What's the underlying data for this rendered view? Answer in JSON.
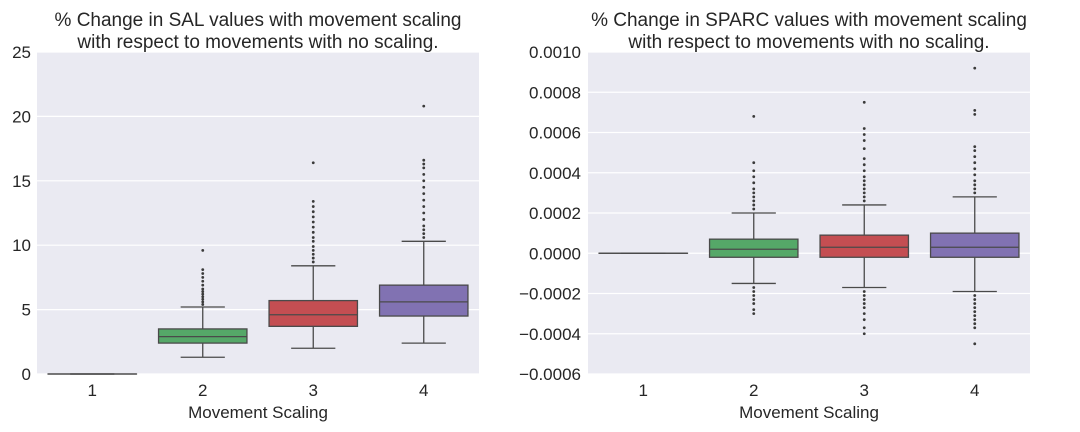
{
  "chart_data": [
    {
      "type": "box",
      "title": [
        "% Change in SAL values with movement scaling",
        "with respect to movements with no scaling."
      ],
      "xlabel": "Movement Scaling",
      "ylabel": "",
      "categories": [
        "1",
        "2",
        "3",
        "4"
      ],
      "ylim": [
        0,
        25
      ],
      "yticks": [
        0,
        5,
        10,
        15,
        20,
        25
      ],
      "ytick_labels": [
        "0",
        "5",
        "10",
        "15",
        "20",
        "25"
      ],
      "grid": true,
      "boxes": [
        {
          "category": "1",
          "color": "#6b6b6b",
          "q1": 0,
          "median": 0,
          "q3": 0,
          "whisker_low": 0,
          "whisker_high": 0,
          "outliers": []
        },
        {
          "category": "2",
          "color": "#55a868",
          "q1": 2.4,
          "median": 2.9,
          "q3": 3.5,
          "whisker_low": 1.3,
          "whisker_high": 5.2,
          "outliers": [
            5.4,
            5.6,
            5.8,
            6.0,
            6.2,
            6.4,
            6.6,
            6.9,
            7.2,
            7.5,
            7.8,
            8.1,
            9.6
          ]
        },
        {
          "category": "3",
          "color": "#c44e52",
          "q1": 3.7,
          "median": 4.6,
          "q3": 5.7,
          "whisker_low": 2.0,
          "whisker_high": 8.4,
          "outliers": [
            8.7,
            9.0,
            9.3,
            9.6,
            9.9,
            10.3,
            10.6,
            11.0,
            11.4,
            11.8,
            12.2,
            12.6,
            13.0,
            13.4,
            16.4
          ]
        },
        {
          "category": "4",
          "color": "#8172b2",
          "q1": 4.5,
          "median": 5.6,
          "q3": 6.9,
          "whisker_low": 2.4,
          "whisker_high": 10.3,
          "outliers": [
            10.6,
            10.9,
            11.2,
            11.5,
            12.0,
            12.5,
            13.0,
            13.5,
            14.0,
            14.5,
            15.0,
            15.5,
            16.0,
            16.3,
            16.6,
            20.8
          ]
        }
      ]
    },
    {
      "type": "box",
      "title": [
        "% Change in SPARC values with movement scaling",
        "with respect to movements with no scaling."
      ],
      "xlabel": "Movement Scaling",
      "ylabel": "",
      "categories": [
        "1",
        "2",
        "3",
        "4"
      ],
      "ylim": [
        -0.0006,
        0.001
      ],
      "yticks": [
        -0.0006,
        -0.0004,
        -0.0002,
        0.0,
        0.0002,
        0.0004,
        0.0006,
        0.0008,
        0.001
      ],
      "ytick_labels": [
        "−0.0006",
        "−0.0004",
        "−0.0002",
        "0.0000",
        "0.0002",
        "0.0004",
        "0.0006",
        "0.0008",
        "0.0010"
      ],
      "grid": true,
      "boxes": [
        {
          "category": "1",
          "color": "#6b6b6b",
          "q1": 0,
          "median": 0,
          "q3": 0,
          "whisker_low": 0,
          "whisker_high": 0,
          "outliers": []
        },
        {
          "category": "2",
          "color": "#55a868",
          "q1": -2e-05,
          "median": 2e-05,
          "q3": 7e-05,
          "whisker_low": -0.00015,
          "whisker_high": 0.0002,
          "outliers": [
            0.00022,
            0.00024,
            0.00026,
            0.00028,
            0.0003,
            0.00032,
            0.00035,
            0.00038,
            0.00041,
            0.00045,
            0.00068,
            -0.00017,
            -0.00019,
            -0.00021,
            -0.00023,
            -0.00025,
            -0.00028,
            -0.0003
          ]
        },
        {
          "category": "3",
          "color": "#c44e52",
          "q1": -2e-05,
          "median": 3e-05,
          "q3": 9e-05,
          "whisker_low": -0.00017,
          "whisker_high": 0.00024,
          "outliers": [
            0.00026,
            0.00028,
            0.0003,
            0.00032,
            0.00034,
            0.00036,
            0.00038,
            0.00041,
            0.00044,
            0.00047,
            0.00052,
            0.00056,
            0.00059,
            0.00062,
            0.00075,
            -0.00019,
            -0.00021,
            -0.00023,
            -0.00025,
            -0.00027,
            -0.0003,
            -0.00033,
            -0.00037,
            -0.0004
          ]
        },
        {
          "category": "4",
          "color": "#8172b2",
          "q1": -2e-05,
          "median": 3e-05,
          "q3": 0.0001,
          "whisker_low": -0.00019,
          "whisker_high": 0.00028,
          "outliers": [
            0.0003,
            0.00032,
            0.00034,
            0.00036,
            0.00039,
            0.00042,
            0.00045,
            0.00048,
            0.00051,
            0.00053,
            0.00069,
            0.00071,
            0.00092,
            -0.00021,
            -0.00023,
            -0.00025,
            -0.00027,
            -0.00029,
            -0.00031,
            -0.00033,
            -0.00035,
            -0.00037,
            -0.00045
          ]
        }
      ]
    }
  ]
}
